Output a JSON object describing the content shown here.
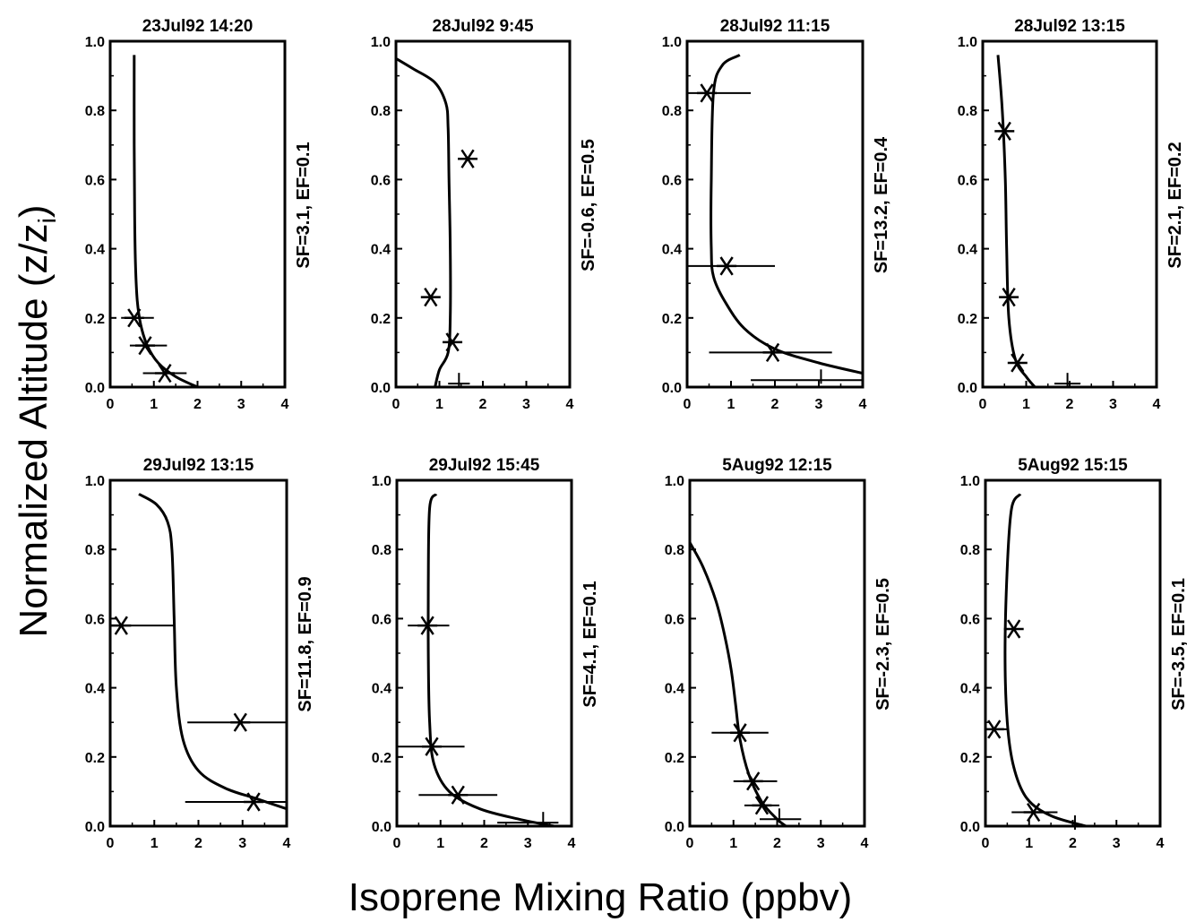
{
  "figure": {
    "ylabel_main": "Normalized Altitude (z/z",
    "ylabel_sub": "i",
    "ylabel_close": ")",
    "xlabel": "Isoprene Mixing Ratio (ppbv)"
  },
  "chart_data": [
    {
      "type": "scatter",
      "title": "23Jul92 14:20",
      "annotation": "SF=3.1, EF=0.1",
      "xlim": [
        0,
        4
      ],
      "ylim": [
        0,
        1
      ],
      "x_ticks": [
        "0",
        "1",
        "2",
        "3",
        "4"
      ],
      "y_ticks": [
        "0.0",
        "0.2",
        "0.4",
        "0.6",
        "0.8",
        "1.0"
      ],
      "curve": [
        [
          2.0,
          0.0
        ],
        [
          1.5,
          0.03
        ],
        [
          1.1,
          0.07
        ],
        [
          0.85,
          0.12
        ],
        [
          0.7,
          0.18
        ],
        [
          0.62,
          0.25
        ],
        [
          0.58,
          0.35
        ],
        [
          0.56,
          0.5
        ],
        [
          0.55,
          0.7
        ],
        [
          0.55,
          0.96
        ]
      ],
      "points": [
        {
          "x": 0.55,
          "y": 0.2,
          "xerr": [
            0.25,
            1.0
          ]
        },
        {
          "x": 0.8,
          "y": 0.12,
          "xerr": [
            0.45,
            1.3
          ]
        },
        {
          "x": 1.25,
          "y": 0.04,
          "xerr": [
            0.75,
            1.75
          ]
        }
      ],
      "crosses": []
    },
    {
      "type": "scatter",
      "title": "28Jul92 9:45",
      "annotation": "SF=-0.6, EF=0.5",
      "xlim": [
        0,
        4
      ],
      "ylim": [
        0,
        1
      ],
      "x_ticks": [
        "0",
        "1",
        "2",
        "3",
        "4"
      ],
      "y_ticks": [
        "0.0",
        "0.2",
        "0.4",
        "0.6",
        "0.8",
        "1.0"
      ],
      "curve": [
        [
          0.9,
          0.0
        ],
        [
          1.0,
          0.05
        ],
        [
          1.2,
          0.1
        ],
        [
          1.25,
          0.2
        ],
        [
          1.25,
          0.4
        ],
        [
          1.22,
          0.6
        ],
        [
          1.2,
          0.75
        ],
        [
          1.15,
          0.82
        ],
        [
          0.9,
          0.88
        ],
        [
          0.4,
          0.92
        ],
        [
          0.0,
          0.95
        ]
      ],
      "points": [
        {
          "x": 1.65,
          "y": 0.66
        },
        {
          "x": 0.8,
          "y": 0.26
        },
        {
          "x": 1.3,
          "y": 0.13
        }
      ],
      "crosses": [
        {
          "x": 1.45,
          "y": 0.01,
          "xerr": [
            1.2,
            1.7
          ]
        }
      ]
    },
    {
      "type": "scatter",
      "title": "28Jul92 11:15",
      "annotation": "SF=13.2, EF=0.4",
      "xlim": [
        0,
        4
      ],
      "ylim": [
        0,
        1
      ],
      "x_ticks": [
        "0",
        "1",
        "2",
        "3",
        "4"
      ],
      "y_ticks": [
        "0.0",
        "0.2",
        "0.4",
        "0.6",
        "0.8",
        "1.0"
      ],
      "curve": [
        [
          1.2,
          0.96
        ],
        [
          0.8,
          0.93
        ],
        [
          0.6,
          0.85
        ],
        [
          0.55,
          0.6
        ],
        [
          0.55,
          0.4
        ],
        [
          0.6,
          0.32
        ],
        [
          0.85,
          0.25
        ],
        [
          1.3,
          0.17
        ],
        [
          2.0,
          0.11
        ],
        [
          3.0,
          0.07
        ],
        [
          4.0,
          0.04
        ]
      ],
      "points": [
        {
          "x": 0.45,
          "y": 0.85,
          "xerr": [
            0.0,
            1.45
          ]
        },
        {
          "x": 0.9,
          "y": 0.35,
          "xerr": [
            0.0,
            2.0
          ]
        },
        {
          "x": 1.95,
          "y": 0.1,
          "xerr": [
            0.5,
            3.3
          ]
        }
      ],
      "crosses": [
        {
          "x": 3.05,
          "y": 0.02,
          "xerr": [
            1.45,
            4.0
          ]
        }
      ]
    },
    {
      "type": "scatter",
      "title": "28Jul92 13:15",
      "annotation": "SF=2.1, EF=0.2",
      "xlim": [
        0,
        4
      ],
      "ylim": [
        0,
        1
      ],
      "x_ticks": [
        "0",
        "1",
        "2",
        "3",
        "4"
      ],
      "y_ticks": [
        "0.0",
        "0.2",
        "0.4",
        "0.6",
        "0.8",
        "1.0"
      ],
      "curve": [
        [
          0.35,
          0.96
        ],
        [
          0.45,
          0.8
        ],
        [
          0.52,
          0.6
        ],
        [
          0.55,
          0.4
        ],
        [
          0.6,
          0.2
        ],
        [
          0.75,
          0.08
        ],
        [
          1.0,
          0.03
        ],
        [
          1.2,
          0.0
        ]
      ],
      "points": [
        {
          "x": 0.5,
          "y": 0.74
        },
        {
          "x": 0.6,
          "y": 0.26
        },
        {
          "x": 0.8,
          "y": 0.07
        }
      ],
      "crosses": [
        {
          "x": 1.95,
          "y": 0.01,
          "xerr": [
            1.65,
            2.25
          ]
        }
      ]
    },
    {
      "type": "scatter",
      "title": "29Jul92 13:15",
      "annotation": "SF=11.8, EF=0.9",
      "xlim": [
        0,
        4
      ],
      "ylim": [
        0,
        1
      ],
      "x_ticks": [
        "0",
        "1",
        "2",
        "3",
        "4"
      ],
      "y_ticks": [
        "0.0",
        "0.2",
        "0.4",
        "0.6",
        "0.8",
        "1.0"
      ],
      "curve": [
        [
          0.65,
          0.96
        ],
        [
          1.05,
          0.93
        ],
        [
          1.3,
          0.88
        ],
        [
          1.4,
          0.8
        ],
        [
          1.45,
          0.6
        ],
        [
          1.5,
          0.4
        ],
        [
          1.65,
          0.25
        ],
        [
          2.0,
          0.16
        ],
        [
          2.6,
          0.11
        ],
        [
          3.3,
          0.08
        ],
        [
          4.0,
          0.05
        ]
      ],
      "points": [
        {
          "x": 0.25,
          "y": 0.58,
          "xerr": [
            0.0,
            1.45
          ]
        },
        {
          "x": 2.95,
          "y": 0.3,
          "xerr": [
            1.75,
            4.0
          ]
        },
        {
          "x": 3.25,
          "y": 0.07,
          "xerr": [
            1.7,
            4.0
          ]
        }
      ],
      "crosses": []
    },
    {
      "type": "scatter",
      "title": "29Jul92 15:45",
      "annotation": "SF=4.1, EF=0.1",
      "xlim": [
        0,
        4
      ],
      "ylim": [
        0,
        1
      ],
      "x_ticks": [
        "0",
        "1",
        "2",
        "3",
        "4"
      ],
      "y_ticks": [
        "0.0",
        "0.2",
        "0.4",
        "0.6",
        "0.8",
        "1.0"
      ],
      "curve": [
        [
          0.9,
          0.96
        ],
        [
          0.75,
          0.92
        ],
        [
          0.72,
          0.7
        ],
        [
          0.72,
          0.5
        ],
        [
          0.75,
          0.3
        ],
        [
          0.85,
          0.18
        ],
        [
          1.2,
          0.1
        ],
        [
          1.9,
          0.05
        ],
        [
          2.8,
          0.02
        ],
        [
          3.6,
          0.0
        ]
      ],
      "points": [
        {
          "x": 0.7,
          "y": 0.58,
          "xerr": [
            0.25,
            1.2
          ]
        },
        {
          "x": 0.8,
          "y": 0.23,
          "xerr": [
            0.0,
            1.55
          ]
        },
        {
          "x": 1.4,
          "y": 0.09,
          "xerr": [
            0.5,
            2.3
          ]
        }
      ],
      "crosses": [
        {
          "x": 3.35,
          "y": 0.01,
          "xerr": [
            2.3,
            3.7
          ]
        }
      ]
    },
    {
      "type": "scatter",
      "title": "5Aug92 12:15",
      "annotation": "SF=-2.3, EF=0.5",
      "xlim": [
        0,
        4
      ],
      "ylim": [
        0,
        1
      ],
      "x_ticks": [
        "0",
        "1",
        "2",
        "3",
        "4"
      ],
      "y_ticks": [
        "0.0",
        "0.2",
        "0.4",
        "0.6",
        "0.8",
        "1.0"
      ],
      "curve": [
        [
          0.0,
          0.82
        ],
        [
          0.3,
          0.75
        ],
        [
          0.6,
          0.65
        ],
        [
          0.8,
          0.55
        ],
        [
          0.95,
          0.45
        ],
        [
          1.05,
          0.35
        ],
        [
          1.15,
          0.25
        ],
        [
          1.35,
          0.15
        ],
        [
          1.65,
          0.07
        ],
        [
          2.0,
          0.02
        ],
        [
          2.2,
          0.0
        ]
      ],
      "points": [
        {
          "x": 1.15,
          "y": 0.27,
          "xerr": [
            0.5,
            1.8
          ]
        },
        {
          "x": 1.45,
          "y": 0.13,
          "xerr": [
            1.0,
            2.0
          ]
        },
        {
          "x": 1.65,
          "y": 0.06,
          "xerr": [
            1.25,
            2.05
          ]
        }
      ],
      "crosses": [
        {
          "x": 2.05,
          "y": 0.02,
          "xerr": [
            1.6,
            2.55
          ]
        }
      ]
    },
    {
      "type": "scatter",
      "title": "5Aug92 15:15",
      "annotation": "SF=-3.5, EF=0.1",
      "xlim": [
        0,
        4
      ],
      "ylim": [
        0,
        1
      ],
      "x_ticks": [
        "0",
        "1",
        "2",
        "3",
        "4"
      ],
      "y_ticks": [
        "0.0",
        "0.2",
        "0.4",
        "0.6",
        "0.8",
        "1.0"
      ],
      "curve": [
        [
          0.8,
          0.96
        ],
        [
          0.6,
          0.92
        ],
        [
          0.5,
          0.75
        ],
        [
          0.45,
          0.5
        ],
        [
          0.5,
          0.3
        ],
        [
          0.65,
          0.17
        ],
        [
          0.95,
          0.08
        ],
        [
          1.5,
          0.03
        ],
        [
          2.3,
          0.0
        ]
      ],
      "points": [
        {
          "x": 0.65,
          "y": 0.57
        },
        {
          "x": 0.2,
          "y": 0.28,
          "xerr": [
            0.0,
            0.5
          ]
        },
        {
          "x": 1.1,
          "y": 0.04,
          "xerr": [
            0.6,
            1.65
          ]
        }
      ],
      "crosses": [
        {
          "x": 2.05,
          "y": 0.0,
          "xerr": [
            1.7,
            2.7
          ]
        }
      ]
    }
  ]
}
